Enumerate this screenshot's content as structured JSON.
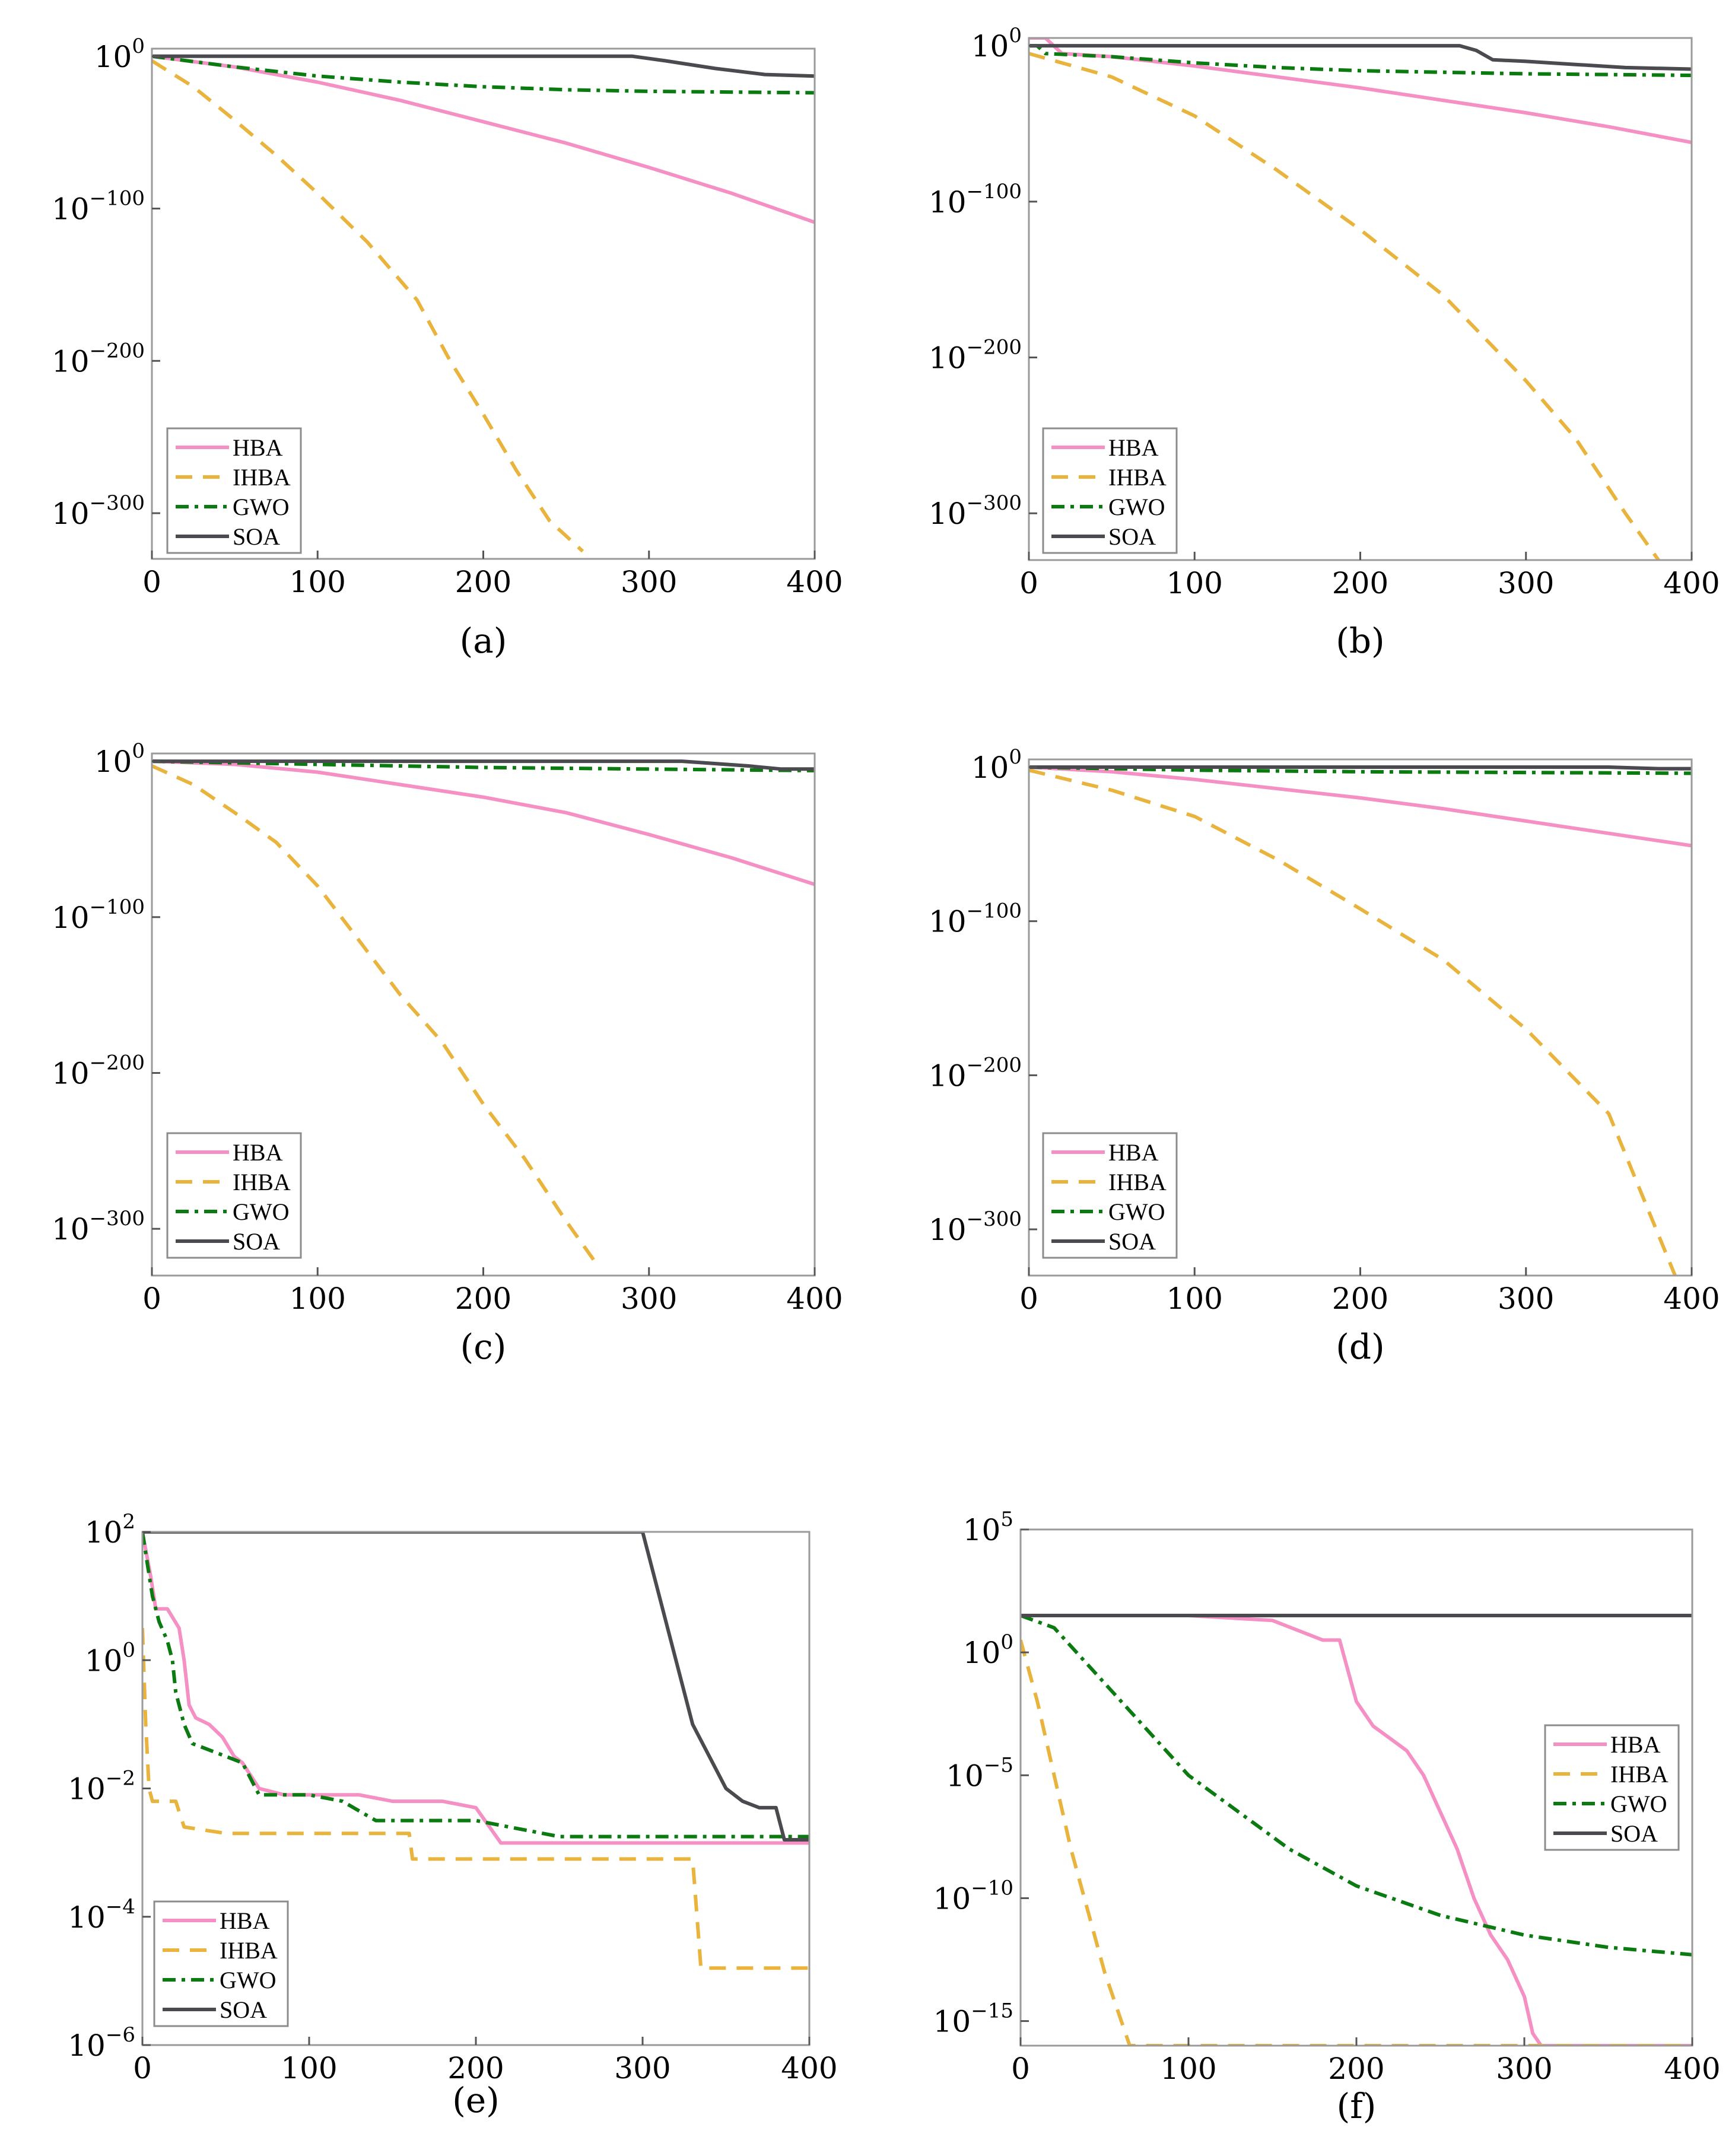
{
  "styles": {
    "HBA": {
      "color": "#f590c4",
      "dash": ""
    },
    "IHBA": {
      "color": "#e9b43d",
      "dash": "dashed"
    },
    "GWO": {
      "color": "#0b7a10",
      "dash": "dashdot"
    },
    "SOA": {
      "color": "#4a4a4f",
      "dash": ""
    }
  },
  "chart_data": [
    {
      "type": "line",
      "caption": "(a)",
      "yscale": "log",
      "xlim": [
        0,
        400
      ],
      "ylim_exp": [
        -330,
        5
      ],
      "xticks": [
        0,
        100,
        200,
        300,
        400
      ],
      "yticks": [
        {
          "base": "10",
          "exp": "0"
        },
        {
          "base": "10",
          "exp": "−100"
        },
        {
          "base": "10",
          "exp": "−200"
        },
        {
          "base": "10",
          "exp": "−300"
        }
      ],
      "ytick_values": [
        0,
        -100,
        -200,
        -300
      ],
      "legend": {
        "position": "lower-left",
        "entries": [
          "HBA",
          "IHBA",
          "GWO",
          "SOA"
        ]
      },
      "series": [
        {
          "name": "HBA",
          "x": [
            0,
            50,
            100,
            150,
            200,
            250,
            300,
            350,
            400
          ],
          "log10y": [
            0,
            -7,
            -17,
            -29,
            -43,
            -57,
            -73,
            -90,
            -109
          ]
        },
        {
          "name": "IHBA",
          "x": [
            0,
            25,
            50,
            75,
            100,
            130,
            160,
            180,
            200,
            220,
            240,
            260
          ],
          "log10y": [
            -3,
            -20,
            -42,
            -65,
            -90,
            -122,
            -160,
            -200,
            -235,
            -272,
            -305,
            -325
          ]
        },
        {
          "name": "GWO",
          "x": [
            0,
            50,
            100,
            150,
            200,
            250,
            300,
            350,
            400
          ],
          "log10y": [
            0,
            -7,
            -13,
            -17,
            -20,
            -22,
            -23,
            -23.5,
            -24
          ]
        },
        {
          "name": "SOA",
          "x": [
            0,
            250,
            290,
            310,
            340,
            370,
            400
          ],
          "log10y": [
            0,
            0,
            0,
            -3,
            -8,
            -12,
            -13
          ]
        }
      ]
    },
    {
      "type": "line",
      "caption": "(b)",
      "yscale": "log",
      "xlim": [
        0,
        400
      ],
      "ylim_exp": [
        -330,
        5
      ],
      "xticks": [
        0,
        100,
        200,
        300,
        400
      ],
      "yticks": [
        {
          "base": "10",
          "exp": "0"
        },
        {
          "base": "10",
          "exp": "−100"
        },
        {
          "base": "10",
          "exp": "−200"
        },
        {
          "base": "10",
          "exp": "−300"
        }
      ],
      "ytick_values": [
        0,
        -100,
        -200,
        -300
      ],
      "legend": {
        "position": "lower-left",
        "entries": [
          "HBA",
          "IHBA",
          "GWO",
          "SOA"
        ]
      },
      "series": [
        {
          "name": "HBA",
          "x": [
            0,
            10,
            20,
            50,
            100,
            150,
            200,
            250,
            300,
            350,
            400
          ],
          "log10y": [
            5,
            5,
            -5,
            -7,
            -13,
            -20,
            -27,
            -35,
            -43,
            -52,
            -62
          ]
        },
        {
          "name": "IHBA",
          "x": [
            0,
            50,
            100,
            150,
            200,
            250,
            300,
            330,
            360,
            380
          ],
          "log10y": [
            -5,
            -20,
            -45,
            -80,
            -118,
            -160,
            -215,
            -252,
            -300,
            -330
          ]
        },
        {
          "name": "GWO",
          "x": [
            0,
            5,
            10,
            50,
            100,
            150,
            200,
            250,
            300,
            350,
            400
          ],
          "log10y": [
            0,
            0,
            -5,
            -7,
            -11,
            -14,
            -16,
            -17,
            -18,
            -18.5,
            -19
          ]
        },
        {
          "name": "SOA",
          "x": [
            0,
            260,
            270,
            280,
            300,
            330,
            360,
            400
          ],
          "log10y": [
            0,
            0,
            -3,
            -9,
            -10,
            -12,
            -14,
            -15
          ]
        }
      ]
    },
    {
      "type": "line",
      "caption": "(c)",
      "yscale": "log",
      "xlim": [
        0,
        400
      ],
      "ylim_exp": [
        -330,
        5
      ],
      "xticks": [
        0,
        100,
        200,
        300,
        400
      ],
      "yticks": [
        {
          "base": "10",
          "exp": "0"
        },
        {
          "base": "10",
          "exp": "−100"
        },
        {
          "base": "10",
          "exp": "−200"
        },
        {
          "base": "10",
          "exp": "−300"
        }
      ],
      "ytick_values": [
        0,
        -100,
        -200,
        -300
      ],
      "legend": {
        "position": "lower-left",
        "entries": [
          "HBA",
          "IHBA",
          "GWO",
          "SOA"
        ]
      },
      "series": [
        {
          "name": "HBA",
          "x": [
            0,
            50,
            100,
            150,
            200,
            250,
            300,
            350,
            400
          ],
          "log10y": [
            0,
            -2,
            -7,
            -15,
            -23,
            -33,
            -47,
            -62,
            -79
          ]
        },
        {
          "name": "IHBA",
          "x": [
            0,
            25,
            50,
            75,
            100,
            125,
            150,
            175,
            200,
            225,
            250,
            270
          ],
          "log10y": [
            -3,
            -15,
            -33,
            -52,
            -80,
            -115,
            -150,
            -180,
            -220,
            -255,
            -295,
            -325
          ]
        },
        {
          "name": "GWO",
          "x": [
            0,
            100,
            200,
            300,
            400
          ],
          "log10y": [
            0,
            -2,
            -4,
            -5,
            -6
          ]
        },
        {
          "name": "SOA",
          "x": [
            0,
            320,
            360,
            380,
            400
          ],
          "log10y": [
            0,
            0,
            -3,
            -5,
            -5
          ]
        }
      ]
    },
    {
      "type": "line",
      "caption": "(d)",
      "yscale": "log",
      "xlim": [
        0,
        400
      ],
      "ylim_exp": [
        -330,
        5
      ],
      "xticks": [
        0,
        100,
        200,
        300,
        400
      ],
      "yticks": [
        {
          "base": "10",
          "exp": "0"
        },
        {
          "base": "10",
          "exp": "−100"
        },
        {
          "base": "10",
          "exp": "−200"
        },
        {
          "base": "10",
          "exp": "−300"
        }
      ],
      "ytick_values": [
        0,
        -100,
        -200,
        -300
      ],
      "legend": {
        "position": "lower-left",
        "entries": [
          "HBA",
          "IHBA",
          "GWO",
          "SOA"
        ]
      },
      "series": [
        {
          "name": "HBA",
          "x": [
            0,
            50,
            100,
            150,
            200,
            250,
            300,
            350,
            400
          ],
          "log10y": [
            0,
            -3,
            -8,
            -14,
            -20,
            -27,
            -35,
            -43,
            -51
          ]
        },
        {
          "name": "IHBA",
          "x": [
            0,
            50,
            100,
            150,
            200,
            250,
            300,
            350,
            390
          ],
          "log10y": [
            -2,
            -15,
            -32,
            -60,
            -92,
            -125,
            -170,
            -225,
            -330
          ]
        },
        {
          "name": "GWO",
          "x": [
            0,
            100,
            200,
            300,
            400
          ],
          "log10y": [
            0,
            -2,
            -3,
            -3.5,
            -4
          ]
        },
        {
          "name": "SOA",
          "x": [
            0,
            350,
            380,
            400
          ],
          "log10y": [
            0,
            0,
            -1,
            -1
          ]
        }
      ]
    },
    {
      "type": "line",
      "caption": "(e)",
      "yscale": "log",
      "xlim": [
        0,
        400
      ],
      "ylim_exp": [
        -6,
        2
      ],
      "xticks": [
        0,
        100,
        200,
        300,
        400
      ],
      "yticks": [
        {
          "base": "10",
          "exp": "2"
        },
        {
          "base": "10",
          "exp": "0"
        },
        {
          "base": "10",
          "exp": "−2"
        },
        {
          "base": "10",
          "exp": "−4"
        },
        {
          "base": "10",
          "exp": "−6"
        }
      ],
      "ytick_values": [
        2,
        0,
        -2,
        -4,
        -6
      ],
      "legend": {
        "position": "lower-left",
        "entries": [
          "HBA",
          "IHBA",
          "GWO",
          "SOA"
        ]
      },
      "series": [
        {
          "name": "HBA",
          "x": [
            0,
            5,
            8,
            15,
            22,
            25,
            28,
            32,
            40,
            48,
            55,
            60,
            70,
            85,
            100,
            130,
            150,
            180,
            200,
            215,
            240,
            300,
            400
          ],
          "log10y": [
            2,
            1.3,
            0.8,
            0.8,
            0.5,
            0,
            -0.7,
            -0.9,
            -1,
            -1.2,
            -1.5,
            -1.6,
            -2,
            -2.1,
            -2.1,
            -2.1,
            -2.2,
            -2.2,
            -2.3,
            -2.85,
            -2.85,
            -2.85,
            -2.85
          ]
        },
        {
          "name": "IHBA",
          "x": [
            0,
            2,
            4,
            6,
            20,
            25,
            50,
            100,
            160,
            162,
            300,
            330,
            335,
            400
          ],
          "log10y": [
            0.5,
            -1,
            -2,
            -2.2,
            -2.2,
            -2.6,
            -2.7,
            -2.7,
            -2.7,
            -3.1,
            -3.1,
            -3.1,
            -4.8,
            -4.8
          ]
        },
        {
          "name": "GWO",
          "x": [
            0,
            3,
            6,
            10,
            15,
            18,
            20,
            25,
            30,
            40,
            50,
            60,
            70,
            80,
            100,
            120,
            140,
            160,
            200,
            250,
            400
          ],
          "log10y": [
            2,
            1.5,
            1,
            0.6,
            0.3,
            0,
            -0.5,
            -1,
            -1.3,
            -1.4,
            -1.5,
            -1.6,
            -2.1,
            -2.1,
            -2.1,
            -2.2,
            -2.5,
            -2.5,
            -2.5,
            -2.75,
            -2.75
          ]
        },
        {
          "name": "SOA",
          "x": [
            0,
            300,
            310,
            320,
            330,
            340,
            350,
            360,
            370,
            380,
            385,
            400
          ],
          "log10y": [
            2,
            2,
            1,
            0,
            -1,
            -1.5,
            -2,
            -2.2,
            -2.3,
            -2.3,
            -2.8,
            -2.8
          ]
        }
      ]
    },
    {
      "type": "line",
      "caption": "(f)",
      "yscale": "log",
      "xlim": [
        0,
        400
      ],
      "ylim_exp": [
        -16,
        5
      ],
      "xticks": [
        0,
        100,
        200,
        300,
        400
      ],
      "yticks": [
        {
          "base": "10",
          "exp": "5"
        },
        {
          "base": "10",
          "exp": "0"
        },
        {
          "base": "10",
          "exp": "−5"
        },
        {
          "base": "10",
          "exp": "−10"
        },
        {
          "base": "10",
          "exp": "−15"
        }
      ],
      "ytick_values": [
        5,
        0,
        -5,
        -10,
        -15
      ],
      "legend": {
        "position": "center-right",
        "entries": [
          "HBA",
          "IHBA",
          "GWO",
          "SOA"
        ]
      },
      "series": [
        {
          "name": "HBA",
          "x": [
            0,
            100,
            150,
            180,
            190,
            200,
            210,
            220,
            230,
            240,
            250,
            260,
            270,
            280,
            290,
            300,
            305,
            310,
            315,
            400
          ],
          "log10y": [
            1.5,
            1.5,
            1.3,
            0.5,
            0.5,
            -2,
            -3,
            -3.5,
            -4,
            -5,
            -6.5,
            -8,
            -10,
            -11.5,
            -12.5,
            -14,
            -15.5,
            -16,
            -16,
            -16
          ]
        },
        {
          "name": "IHBA",
          "x": [
            0,
            10,
            20,
            30,
            40,
            50,
            60,
            65,
            70,
            400
          ],
          "log10y": [
            0.5,
            -2,
            -5,
            -8,
            -10.5,
            -13,
            -15,
            -16,
            -16,
            -16
          ]
        },
        {
          "name": "GWO",
          "x": [
            0,
            20,
            40,
            60,
            80,
            100,
            130,
            160,
            200,
            250,
            300,
            350,
            400
          ],
          "log10y": [
            1.5,
            1,
            -0.5,
            -2,
            -3.5,
            -5,
            -6.5,
            -8,
            -9.5,
            -10.7,
            -11.5,
            -12,
            -12.3
          ]
        },
        {
          "name": "SOA",
          "x": [
            0,
            400
          ],
          "log10y": [
            1.5,
            1.5
          ]
        }
      ]
    }
  ]
}
